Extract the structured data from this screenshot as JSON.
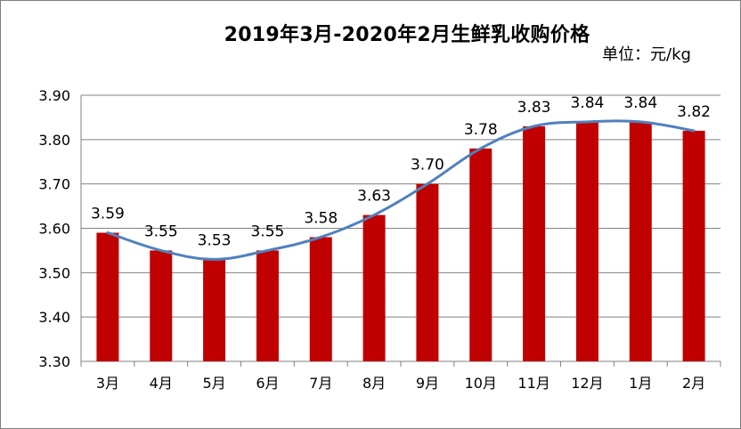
{
  "chart_data": {
    "type": "bar",
    "title": "2019年3月-2020年2月生鲜乳收购价格",
    "unit_label": "单位：元/kg",
    "categories": [
      "3月",
      "4月",
      "5月",
      "6月",
      "7月",
      "8月",
      "9月",
      "10月",
      "11月",
      "12月",
      "1月",
      "2月"
    ],
    "values": [
      3.59,
      3.55,
      3.53,
      3.55,
      3.58,
      3.63,
      3.7,
      3.78,
      3.83,
      3.84,
      3.84,
      3.82
    ],
    "value_labels": [
      "3.59",
      "3.55",
      "3.53",
      "3.55",
      "3.58",
      "3.63",
      "3.70",
      "3.78",
      "3.83",
      "3.84",
      "3.84",
      "3.82"
    ],
    "overlay": "smoothed line through bar values",
    "ylim": [
      3.3,
      3.9
    ],
    "yticks": [
      "3.30",
      "3.40",
      "3.50",
      "3.60",
      "3.70",
      "3.80",
      "3.90"
    ],
    "grid": true,
    "legend": "none",
    "colors": {
      "bar": "#c00000",
      "line": "#4f81bd",
      "grid": "#808080"
    }
  }
}
